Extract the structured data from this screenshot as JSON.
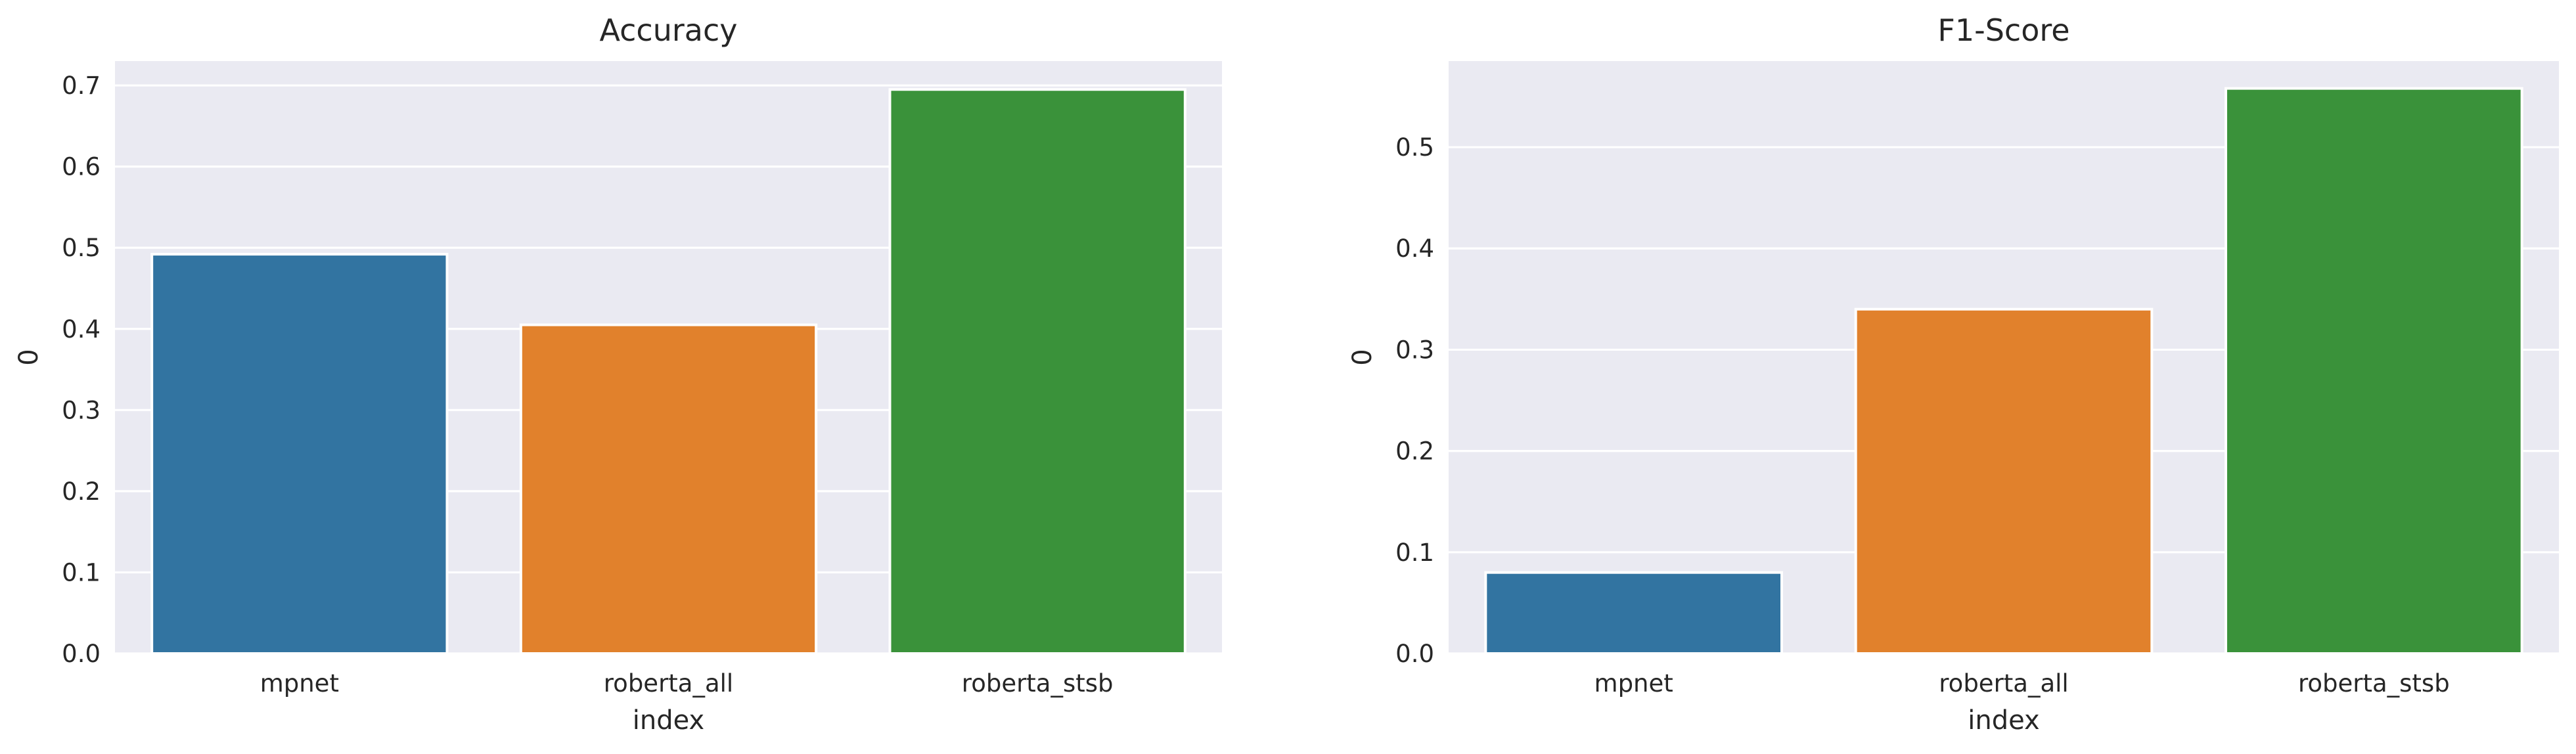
{
  "chart_data": [
    {
      "type": "bar",
      "title": "Accuracy",
      "xlabel": "index",
      "ylabel": "0",
      "categories": [
        "mpnet",
        "roberta_all",
        "roberta_stsb"
      ],
      "values": [
        0.492,
        0.405,
        0.695
      ],
      "ylim": [
        0,
        0.73
      ],
      "yticks": [
        0.0,
        0.1,
        0.2,
        0.3,
        0.4,
        0.5,
        0.6,
        0.7
      ],
      "ytick_labels": [
        "0.0",
        "0.1",
        "0.2",
        "0.3",
        "0.4",
        "0.5",
        "0.6",
        "0.7"
      ],
      "colors": [
        "#3274a1",
        "#e1812c",
        "#3a923a"
      ],
      "grid": true,
      "legend": "none"
    },
    {
      "type": "bar",
      "title": "F1-Score",
      "xlabel": "index",
      "ylabel": "0",
      "categories": [
        "mpnet",
        "roberta_all",
        "roberta_stsb"
      ],
      "values": [
        0.08,
        0.34,
        0.558
      ],
      "ylim": [
        0,
        0.585
      ],
      "yticks": [
        0.0,
        0.1,
        0.2,
        0.3,
        0.4,
        0.5
      ],
      "ytick_labels": [
        "0.0",
        "0.1",
        "0.2",
        "0.3",
        "0.4",
        "0.5"
      ],
      "colors": [
        "#3274a1",
        "#e1812c",
        "#3a923a"
      ],
      "grid": true,
      "legend": "none"
    }
  ]
}
